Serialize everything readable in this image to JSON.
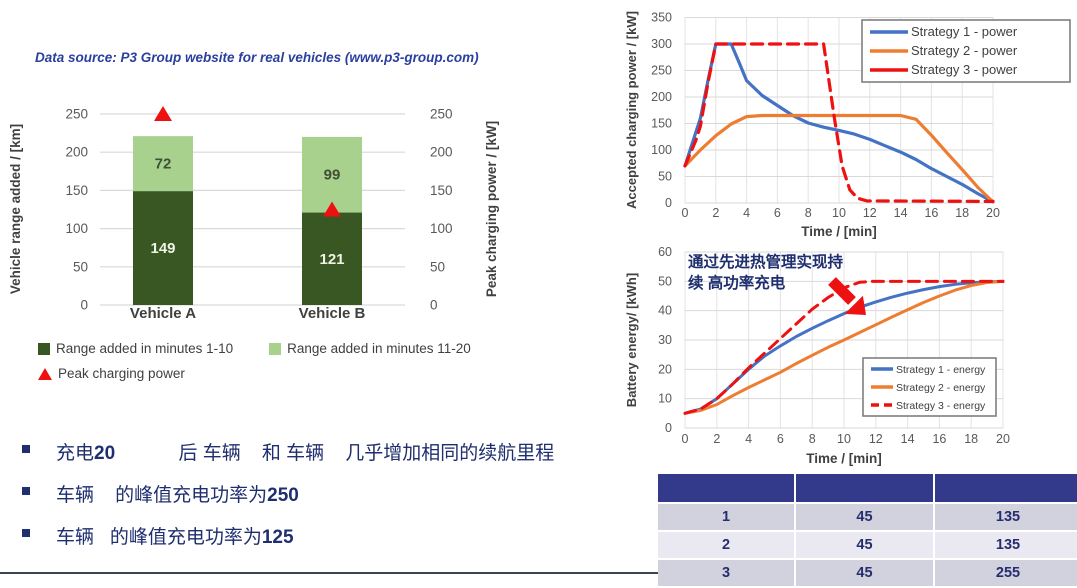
{
  "slide": {
    "data_source": "Data source: P3 Group website for real vehicles (www.p3-group.com)",
    "bullets": [
      {
        "segments": [
          {
            "text": "充电",
            "bold": false
          },
          {
            "text": "20",
            "bold": true
          },
          {
            "text": "            后 车辆    和 车辆    几乎增加相同的续航里程",
            "bold": false
          }
        ]
      },
      {
        "segments": [
          {
            "text": "车辆",
            "bold": false
          },
          {
            "text": "    的峰值充电功率为",
            "bold": false
          },
          {
            "text": "250",
            "bold": true
          }
        ]
      },
      {
        "segments": [
          {
            "text": "车辆",
            "bold": false
          },
          {
            "text": "   的峰值充电功率为",
            "bold": false
          },
          {
            "text": "125",
            "bold": true
          }
        ]
      }
    ]
  },
  "colors": {
    "dark_green": "#385723",
    "light_green": "#a9d18e",
    "red": "#ee1111",
    "blue": "#4472c4",
    "orange": "#ed7d31",
    "navy_text": "#1f2e6e",
    "axis_gray": "#595959",
    "label_gray": "#404040",
    "grid_gray": "#d9d9d9"
  },
  "chart_data": [
    {
      "id": "range-bar-chart",
      "type": "bar",
      "stacked": true,
      "categories": [
        "Vehicle A",
        "Vehicle B"
      ],
      "series": [
        {
          "name": "Range added in minutes 1-10",
          "color": "#385723",
          "values": [
            149,
            121
          ],
          "label_color": "#eef3e6"
        },
        {
          "name": "Range added in minutes 11-20",
          "color": "#a9d18e",
          "values": [
            72,
            99
          ],
          "label_color": "#415035"
        }
      ],
      "markers": {
        "name": "Peak charging power",
        "color": "#ee1111",
        "values": [
          250,
          125
        ]
      },
      "ylabel_left": "Vehicle range added / [km]",
      "ylabel_right": "Peak charging power / [kW]",
      "yticks": [
        0,
        50,
        100,
        150,
        200,
        250
      ],
      "ylim": [
        0,
        250
      ]
    },
    {
      "id": "power-line-chart",
      "type": "line",
      "xlabel": "Time / [min]",
      "ylabel": "Accepted charging power / [kW]",
      "xticks": [
        0,
        2,
        4,
        6,
        8,
        10,
        12,
        14,
        16,
        18,
        20
      ],
      "yticks": [
        0,
        50,
        100,
        150,
        200,
        250,
        300,
        350
      ],
      "xlim": [
        0,
        20
      ],
      "ylim": [
        0,
        350
      ],
      "legend_position": "top-right",
      "series": [
        {
          "name": "Strategy 1 - power",
          "color": "#4472c4",
          "dash": false,
          "legend_dash": false,
          "points": [
            [
              0,
              70
            ],
            [
              1,
              160
            ],
            [
              1.5,
              232
            ],
            [
              2,
              300
            ],
            [
              3,
              300
            ],
            [
              3.5,
              266
            ],
            [
              4,
              231
            ],
            [
              5,
              203
            ],
            [
              6,
              184
            ],
            [
              7,
              165
            ],
            [
              8,
              151
            ],
            [
              9,
              143
            ],
            [
              10,
              137
            ],
            [
              11,
              130
            ],
            [
              12,
              120
            ],
            [
              13,
              108
            ],
            [
              14,
              96
            ],
            [
              15,
              82
            ],
            [
              16,
              65
            ],
            [
              17,
              50
            ],
            [
              18,
              35
            ],
            [
              19,
              18
            ],
            [
              20,
              2
            ]
          ]
        },
        {
          "name": "Strategy 2 - power",
          "color": "#ed7d31",
          "dash": false,
          "legend_dash": false,
          "points": [
            [
              0,
              70
            ],
            [
              1,
              100
            ],
            [
              2,
              127
            ],
            [
              3,
              149
            ],
            [
              4,
              163
            ],
            [
              5,
              165
            ],
            [
              14,
              165
            ],
            [
              15,
              158
            ],
            [
              16,
              128
            ],
            [
              17,
              95
            ],
            [
              18,
              63
            ],
            [
              19,
              30
            ],
            [
              20,
              2
            ]
          ]
        },
        {
          "name": "Strategy 3 - power",
          "color": "#ee1111",
          "dash": true,
          "legend_dash": false,
          "points": [
            [
              0,
              70
            ],
            [
              0.7,
              118
            ],
            [
              1,
              145
            ],
            [
              1.5,
              228
            ],
            [
              2,
              300
            ],
            [
              9,
              300
            ],
            [
              9.7,
              160
            ],
            [
              10.2,
              70
            ],
            [
              10.7,
              25
            ],
            [
              11.2,
              9
            ],
            [
              11.8,
              4
            ],
            [
              20,
              3
            ]
          ]
        }
      ]
    },
    {
      "id": "energy-line-chart",
      "type": "line",
      "xlabel": "Time / [min]",
      "ylabel": "Battery energy/ [kWh]",
      "xticks": [
        0,
        2,
        4,
        6,
        8,
        10,
        12,
        14,
        16,
        18,
        20
      ],
      "yticks": [
        0,
        10,
        20,
        30,
        40,
        50,
        60
      ],
      "xlim": [
        0,
        20
      ],
      "ylim": [
        0,
        60
      ],
      "legend_position": "bottom-right",
      "annotation": {
        "lines": [
          "通过先进热管理实现持",
          "续 高功率充电"
        ],
        "color": "#1f2e6e"
      },
      "series": [
        {
          "name": "Strategy 1 - energy",
          "color": "#4472c4",
          "dash": false,
          "legend_dash": false,
          "points": [
            [
              0,
              5
            ],
            [
              1,
              6.5
            ],
            [
              2,
              10
            ],
            [
              3,
              15
            ],
            [
              4,
              20
            ],
            [
              5,
              24.5
            ],
            [
              6,
              28
            ],
            [
              7,
              31.2
            ],
            [
              8,
              34
            ],
            [
              9,
              36.6
            ],
            [
              10,
              39
            ],
            [
              11,
              41.2
            ],
            [
              12,
              43
            ],
            [
              13,
              44.6
            ],
            [
              14,
              46
            ],
            [
              15,
              47.2
            ],
            [
              16,
              48.2
            ],
            [
              17,
              49
            ],
            [
              18,
              49.5
            ],
            [
              19,
              49.8
            ],
            [
              20,
              50
            ]
          ]
        },
        {
          "name": "Strategy 2 - energy",
          "color": "#ed7d31",
          "dash": false,
          "legend_dash": false,
          "points": [
            [
              0,
              5
            ],
            [
              1,
              6
            ],
            [
              2,
              8
            ],
            [
              3,
              11
            ],
            [
              4,
              13.8
            ],
            [
              5,
              16.4
            ],
            [
              6,
              19
            ],
            [
              7,
              22
            ],
            [
              8,
              24.8
            ],
            [
              9,
              27.5
            ],
            [
              10,
              30
            ],
            [
              11,
              32.6
            ],
            [
              12,
              35.2
            ],
            [
              13,
              37.8
            ],
            [
              14,
              40.3
            ],
            [
              15,
              42.8
            ],
            [
              16,
              45
            ],
            [
              17,
              47
            ],
            [
              18,
              48.6
            ],
            [
              19,
              49.6
            ],
            [
              20,
              50
            ]
          ]
        },
        {
          "name": "Strategy 3 - energy",
          "color": "#ee1111",
          "dash": true,
          "legend_dash": true,
          "points": [
            [
              0,
              5
            ],
            [
              1,
              6.5
            ],
            [
              2,
              10
            ],
            [
              3,
              15
            ],
            [
              4,
              20.5
            ],
            [
              5,
              25.5
            ],
            [
              6,
              30.5
            ],
            [
              7,
              35.5
            ],
            [
              8,
              40.5
            ],
            [
              9,
              44.5
            ],
            [
              10,
              47.8
            ],
            [
              11,
              49.7
            ],
            [
              11.8,
              50
            ],
            [
              20,
              50
            ]
          ]
        }
      ]
    },
    {
      "id": "summary-table",
      "type": "table",
      "header": [
        "",
        "",
        ""
      ],
      "rows": [
        [
          "1",
          "45",
          "135"
        ],
        [
          "2",
          "45",
          "135"
        ],
        [
          "3",
          "45",
          "255"
        ]
      ],
      "header_bg": "#333a8c",
      "row_bg": [
        "#d2d1de",
        "#eae9f1"
      ],
      "text_color": "#262e6e"
    }
  ]
}
